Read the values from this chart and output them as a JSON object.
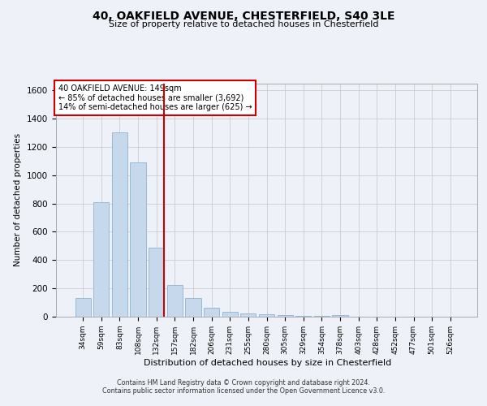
{
  "title_line1": "40, OAKFIELD AVENUE, CHESTERFIELD, S40 3LE",
  "title_line2": "Size of property relative to detached houses in Chesterfield",
  "xlabel": "Distribution of detached houses by size in Chesterfield",
  "ylabel": "Number of detached properties",
  "categories": [
    "34sqm",
    "59sqm",
    "83sqm",
    "108sqm",
    "132sqm",
    "157sqm",
    "182sqm",
    "206sqm",
    "231sqm",
    "255sqm",
    "280sqm",
    "305sqm",
    "329sqm",
    "354sqm",
    "378sqm",
    "403sqm",
    "428sqm",
    "452sqm",
    "477sqm",
    "501sqm",
    "526sqm"
  ],
  "values": [
    130,
    810,
    1305,
    1090,
    490,
    225,
    130,
    65,
    35,
    25,
    15,
    10,
    5,
    5,
    10,
    0,
    0,
    0,
    0,
    0,
    0
  ],
  "bar_color": "#c6d9ec",
  "bar_edge_color": "#8ab4d4",
  "vline_bar_index": 4,
  "vline_color": "#cc0000",
  "annotation_title": "40 OAKFIELD AVENUE: 149sqm",
  "annotation_line1": "← 85% of detached houses are smaller (3,692)",
  "annotation_line2": "14% of semi-detached houses are larger (625) →",
  "annotation_box_color": "#ffffff",
  "annotation_box_edgecolor": "#cc0000",
  "ylim": [
    0,
    1650
  ],
  "yticks": [
    0,
    200,
    400,
    600,
    800,
    1000,
    1200,
    1400,
    1600
  ],
  "footer_line1": "Contains HM Land Registry data © Crown copyright and database right 2024.",
  "footer_line2": "Contains public sector information licensed under the Open Government Licence v3.0.",
  "background_color": "#eef2f8",
  "plot_bg_color": "#eef2f8"
}
